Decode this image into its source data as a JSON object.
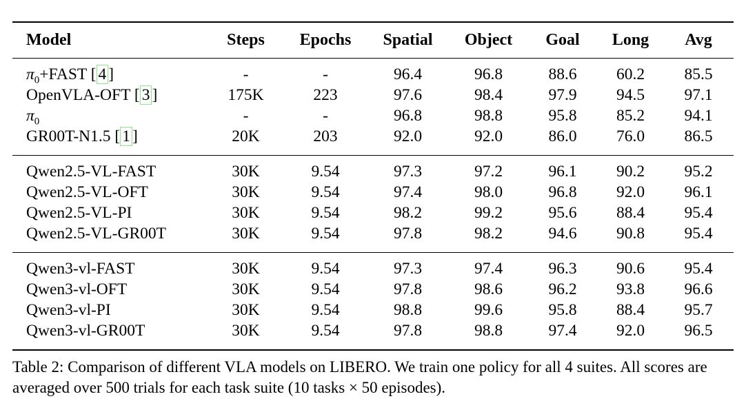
{
  "colors": {
    "text": "#000000",
    "rule": "#000000",
    "citation_box": "#8ce68c"
  },
  "table": {
    "columns": [
      {
        "key": "model",
        "label": "Model",
        "align": "left"
      },
      {
        "key": "steps",
        "label": "Steps",
        "align": "center"
      },
      {
        "key": "epochs",
        "label": "Epochs",
        "align": "center"
      },
      {
        "key": "spatial",
        "label": "Spatial",
        "align": "center"
      },
      {
        "key": "object",
        "label": "Object",
        "align": "center"
      },
      {
        "key": "goal",
        "label": "Goal",
        "align": "center"
      },
      {
        "key": "long",
        "label": "Long",
        "align": "center"
      },
      {
        "key": "avg",
        "label": "Avg",
        "align": "center"
      }
    ],
    "groups": [
      {
        "rows": [
          {
            "model": [
              {
                "text": "π",
                "italic": true
              },
              {
                "text": "0",
                "sub": true
              },
              {
                "text": "+FAST"
              }
            ],
            "citation": "4",
            "steps": "-",
            "epochs": "-",
            "spatial": "96.4",
            "object": "96.8",
            "goal": "88.6",
            "long": "60.2",
            "avg": "85.5"
          },
          {
            "model": [
              {
                "text": "OpenVLA-OFT"
              }
            ],
            "citation": "3",
            "steps": "175K",
            "epochs": "223",
            "spatial": "97.6",
            "object": "98.4",
            "goal": "97.9",
            "long": "94.5",
            "avg": "97.1"
          },
          {
            "model": [
              {
                "text": "π",
                "italic": true
              },
              {
                "text": "0",
                "sub": true
              }
            ],
            "citation": null,
            "steps": "-",
            "epochs": "-",
            "spatial": "96.8",
            "object": "98.8",
            "goal": "95.8",
            "long": "85.2",
            "avg": "94.1"
          },
          {
            "model": [
              {
                "text": "GR00T-N1.5"
              }
            ],
            "citation": "1",
            "steps": "20K",
            "epochs": "203",
            "spatial": "92.0",
            "object": "92.0",
            "goal": "86.0",
            "long": "76.0",
            "avg": "86.5"
          }
        ]
      },
      {
        "rows": [
          {
            "model": [
              {
                "text": "Qwen2.5-VL-FAST"
              }
            ],
            "citation": null,
            "steps": "30K",
            "epochs": "9.54",
            "spatial": "97.3",
            "object": "97.2",
            "goal": "96.1",
            "long": "90.2",
            "avg": "95.2"
          },
          {
            "model": [
              {
                "text": "Qwen2.5-VL-OFT"
              }
            ],
            "citation": null,
            "steps": "30K",
            "epochs": "9.54",
            "spatial": "97.4",
            "object": "98.0",
            "goal": "96.8",
            "long": "92.0",
            "avg": "96.1"
          },
          {
            "model": [
              {
                "text": "Qwen2.5-VL-PI"
              }
            ],
            "citation": null,
            "steps": "30K",
            "epochs": "9.54",
            "spatial": "98.2",
            "object": "99.2",
            "goal": "95.6",
            "long": "88.4",
            "avg": "95.4"
          },
          {
            "model": [
              {
                "text": "Qwen2.5-VL-GR00T"
              }
            ],
            "citation": null,
            "steps": "30K",
            "epochs": "9.54",
            "spatial": "97.8",
            "object": "98.2",
            "goal": "94.6",
            "long": "90.8",
            "avg": "95.4"
          }
        ]
      },
      {
        "rows": [
          {
            "model": [
              {
                "text": "Qwen3-vl-FAST"
              }
            ],
            "citation": null,
            "steps": "30K",
            "epochs": "9.54",
            "spatial": "97.3",
            "object": "97.4",
            "goal": "96.3",
            "long": "90.6",
            "avg": "95.4"
          },
          {
            "model": [
              {
                "text": "Qwen3-vl-OFT"
              }
            ],
            "citation": null,
            "steps": "30K",
            "epochs": "9.54",
            "spatial": "97.8",
            "object": "98.6",
            "goal": "96.2",
            "long": "93.8",
            "avg": "96.6"
          },
          {
            "model": [
              {
                "text": "Qwen3-vl-PI"
              }
            ],
            "citation": null,
            "steps": "30K",
            "epochs": "9.54",
            "spatial": "98.8",
            "object": "99.6",
            "goal": "95.8",
            "long": "88.4",
            "avg": "95.7"
          },
          {
            "model": [
              {
                "text": "Qwen3-vl-GR00T"
              }
            ],
            "citation": null,
            "steps": "30K",
            "epochs": "9.54",
            "spatial": "97.8",
            "object": "98.8",
            "goal": "97.4",
            "long": "92.0",
            "avg": "96.5"
          }
        ]
      }
    ]
  },
  "caption": "Table 2: Comparison of different VLA models on LIBERO. We train one policy for all 4 suites. All scores are averaged over 500 trials for each task suite (10 tasks × 50 episodes)."
}
